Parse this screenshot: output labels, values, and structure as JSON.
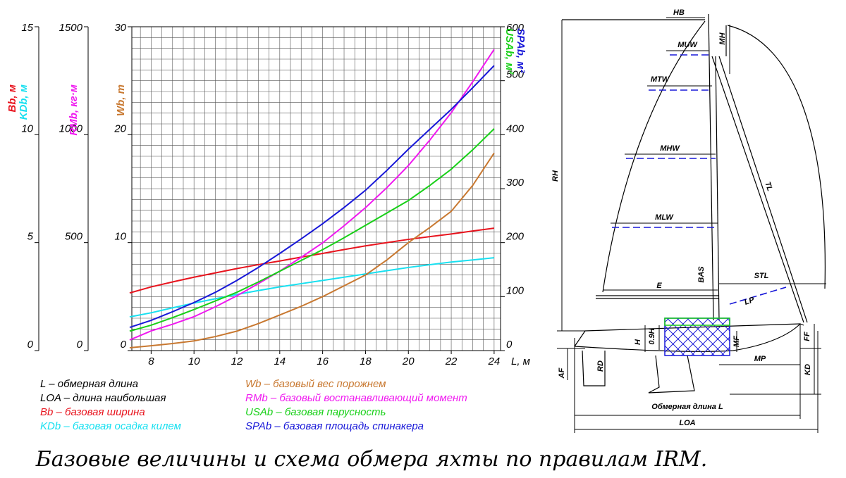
{
  "chart_data": {
    "type": "line",
    "x_label": "L, м",
    "x": [
      7,
      8,
      9,
      10,
      11,
      12,
      13,
      14,
      15,
      16,
      17,
      18,
      19,
      20,
      21,
      22,
      23,
      24
    ],
    "xlim": [
      7.1,
      24.3
    ],
    "xticks": [
      8,
      10,
      12,
      14,
      16,
      18,
      20,
      22,
      24
    ],
    "minor_xticks": [
      7.5,
      8,
      8.5,
      9,
      9.5,
      10,
      10.5,
      11,
      11.5,
      12,
      12.5,
      13,
      13.5,
      14,
      14.5,
      15,
      15.5,
      16,
      16.5,
      17,
      17.5,
      18,
      18.5,
      19,
      19.5,
      20,
      20.5,
      21,
      21.5,
      22,
      22.5,
      23,
      23.5,
      24
    ],
    "minor_yticks": [
      1,
      2,
      3,
      4,
      5,
      6,
      7,
      8,
      9,
      10,
      11,
      12,
      13,
      14,
      15,
      16,
      17,
      18,
      19,
      20,
      21,
      22,
      23,
      24,
      25,
      26,
      27,
      28,
      29
    ],
    "grid": true,
    "y_axes": [
      {
        "side": "left",
        "labels": [
          {
            "text": "Bb, м",
            "color": "#e8141e"
          },
          {
            "text": "KDb, м",
            "color": "#18e0f0"
          }
        ],
        "ylim": [
          0,
          15
        ],
        "yticks": [
          0,
          5,
          10,
          15
        ]
      },
      {
        "side": "left",
        "labels": [
          {
            "text": "RMb, кг·м",
            "color": "#f018f0"
          }
        ],
        "ylim": [
          0,
          1500
        ],
        "yticks": [
          0,
          500,
          1000,
          1500
        ]
      },
      {
        "side": "left",
        "labels": [
          {
            "text": "Wb, т",
            "color": "#c87830"
          }
        ],
        "ylim": [
          0,
          30
        ],
        "yticks": [
          0,
          10,
          20,
          30
        ]
      },
      {
        "side": "right",
        "labels": [
          {
            "text": "USAb, м²",
            "color": "#18d018"
          },
          {
            "text": "SPAb, м²",
            "color": "#1818d8"
          }
        ],
        "ylim": [
          0,
          600
        ],
        "yticks": [
          0,
          100,
          200,
          300,
          400,
          500,
          600
        ]
      }
    ],
    "series": [
      {
        "name": "Bb – базовая ширина",
        "color": "#e8141e",
        "axis": 0,
        "values": [
          2.67,
          2.95,
          3.18,
          3.4,
          3.6,
          3.8,
          3.98,
          4.15,
          4.33,
          4.5,
          4.68,
          4.85,
          5.0,
          5.15,
          5.28,
          5.4,
          5.54,
          5.67
        ]
      },
      {
        "name": "KDb – базовая осадка килем",
        "color": "#18e0f0",
        "axis": 0,
        "values": [
          1.56,
          1.75,
          1.98,
          2.2,
          2.4,
          2.6,
          2.78,
          2.95,
          3.1,
          3.25,
          3.4,
          3.55,
          3.7,
          3.85,
          3.98,
          4.1,
          4.2,
          4.3
        ]
      },
      {
        "name": "Wb – базовый вес порожнем",
        "color": "#c87830",
        "axis": 2,
        "values": [
          0.26,
          0.45,
          0.65,
          0.9,
          1.3,
          1.8,
          2.5,
          3.3,
          4.1,
          5.0,
          6.0,
          7.0,
          8.4,
          10.0,
          11.4,
          12.9,
          15.3,
          18.3
        ]
      },
      {
        "name": "RMb – базовый востанавливающий момент",
        "color": "#f018f0",
        "axis": 1,
        "values": [
          49,
          91,
          122,
          157,
          203,
          254,
          310,
          368,
          432,
          499,
          578,
          662,
          755,
          857,
          975,
          1102,
          1245,
          1395
        ]
      },
      {
        "name": "USAb – базовая парусность",
        "color": "#18d018",
        "axis": 3,
        "values": [
          36,
          47,
          61,
          76,
          92,
          108,
          127,
          147,
          167,
          187,
          209,
          232,
          255,
          278,
          306,
          336,
          372,
          411
        ]
      },
      {
        "name": "SPAb – базовая площадь спинакера",
        "color": "#1818d8",
        "axis": 3,
        "values": [
          43,
          56,
          72,
          89,
          108,
          130,
          154,
          180,
          207,
          235,
          265,
          297,
          334,
          373,
          410,
          447,
          487,
          528
        ]
      }
    ],
    "notes": [
      "L – обмерная длина",
      "LOA – длина наибольшая"
    ]
  },
  "diagram": {
    "labels": [
      "HB",
      "MH",
      "MUW",
      "MTW",
      "MHW",
      "MLW",
      "E",
      "BAS",
      "STL",
      "LP",
      "TL",
      "RH",
      "H",
      "0.9H",
      "MF",
      "FF",
      "AF",
      "RD",
      "KD",
      "MP",
      "Обмерная длина L",
      "LOA"
    ]
  },
  "caption": "Базовые величины и схема обмера яхты по правилам IRM."
}
